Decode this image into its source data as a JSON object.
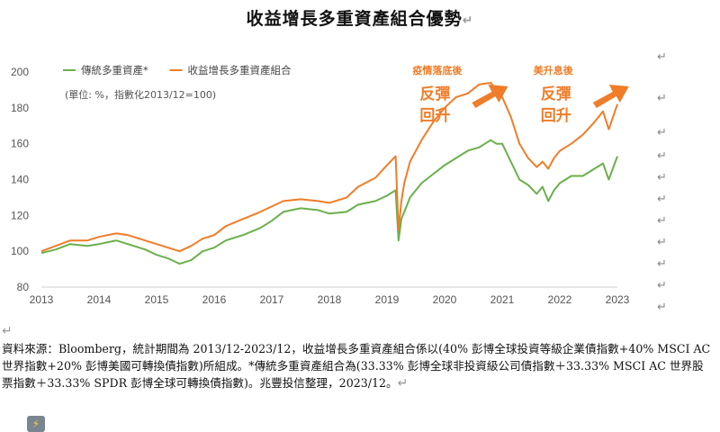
{
  "document": {
    "title": "收益增長多重資產組合優勢",
    "paragraph_mark": "↵",
    "source_text": "資料來源：Bloomberg，統計期間為 2013/12-2023/12，收益增長多重資產組合係以(40% 彭博全球投資等級企業債指數+40% MSCI AC 世界指數+20% 彭博美國可轉換債指數)所組成。*傳統多重資產組合為(33.33% 彭博全球非投資級公司債指數＋33.33% MSCI AC 世界股票指數＋33.33% SPDR 彭博全球可轉換債指數)。兆豐投信整理，2023/12。"
  },
  "chart_data": {
    "type": "line",
    "title": "",
    "xlabel": "",
    "ylabel": "",
    "note": "(單位: %，指數化2013/12=100)",
    "x_ticks": [
      "2013",
      "2014",
      "2015",
      "2016",
      "2017",
      "2018",
      "2019",
      "2020",
      "2021",
      "2022",
      "2023"
    ],
    "y_ticks": [
      80,
      100,
      120,
      140,
      160,
      180,
      200
    ],
    "xlim": [
      2013.0,
      2023.0
    ],
    "ylim": [
      80,
      200
    ],
    "grid": false,
    "legend_position": "top-left",
    "series": [
      {
        "name": "傳統多重資產*",
        "color": "#6ab04c",
        "x": [
          2013.0,
          2013.25,
          2013.5,
          2013.8,
          2014.0,
          2014.3,
          2014.5,
          2014.8,
          2015.0,
          2015.2,
          2015.4,
          2015.6,
          2015.8,
          2016.0,
          2016.2,
          2016.5,
          2016.8,
          2017.0,
          2017.2,
          2017.5,
          2017.8,
          2018.0,
          2018.3,
          2018.5,
          2018.8,
          2019.0,
          2019.15,
          2019.2,
          2019.25,
          2019.3,
          2019.4,
          2019.6,
          2019.8,
          2020.0,
          2020.2,
          2020.4,
          2020.6,
          2020.8,
          2020.9,
          2021.0,
          2021.15,
          2021.3,
          2021.45,
          2021.6,
          2021.7,
          2021.8,
          2021.9,
          2022.0,
          2022.2,
          2022.4,
          2022.6,
          2022.75,
          2022.85,
          2023.0
        ],
        "y": [
          99,
          101,
          104,
          103,
          104,
          106,
          104,
          101,
          98,
          96,
          93,
          95,
          100,
          102,
          106,
          109,
          113,
          117,
          122,
          124,
          123,
          121,
          122,
          126,
          128,
          131,
          134,
          106,
          118,
          122,
          130,
          138,
          143,
          148,
          152,
          156,
          158,
          162,
          160,
          160,
          150,
          140,
          137,
          132,
          136,
          128,
          134,
          138,
          142,
          142,
          146,
          149,
          140,
          153
        ]
      },
      {
        "name": "收益增長多重資產組合",
        "color": "#ef7d29",
        "x": [
          2013.0,
          2013.25,
          2013.5,
          2013.8,
          2014.0,
          2014.3,
          2014.5,
          2014.8,
          2015.0,
          2015.2,
          2015.4,
          2015.6,
          2015.8,
          2016.0,
          2016.2,
          2016.5,
          2016.8,
          2017.0,
          2017.2,
          2017.5,
          2017.8,
          2018.0,
          2018.3,
          2018.5,
          2018.8,
          2019.0,
          2019.15,
          2019.2,
          2019.25,
          2019.3,
          2019.4,
          2019.6,
          2019.8,
          2020.0,
          2020.2,
          2020.4,
          2020.6,
          2020.8,
          2020.9,
          2021.0,
          2021.15,
          2021.3,
          2021.45,
          2021.6,
          2021.7,
          2021.8,
          2021.9,
          2022.0,
          2022.2,
          2022.4,
          2022.6,
          2022.75,
          2022.85,
          2023.0
        ],
        "y": [
          100,
          103,
          106,
          106,
          108,
          110,
          109,
          106,
          104,
          102,
          100,
          103,
          107,
          109,
          114,
          118,
          122,
          125,
          128,
          129,
          128,
          127,
          130,
          136,
          141,
          148,
          153,
          112,
          128,
          138,
          150,
          162,
          172,
          180,
          186,
          188,
          193,
          194,
          190,
          186,
          175,
          160,
          152,
          147,
          150,
          146,
          152,
          156,
          160,
          165,
          172,
          178,
          168,
          182
        ]
      }
    ],
    "annotations": [
      {
        "x": 2020.1,
        "small": "疫情落底後",
        "big": [
          "反彈",
          "回升"
        ],
        "arrow": true
      },
      {
        "x": 2022.2,
        "small": "美升息後",
        "big": [
          "反彈",
          "回升"
        ],
        "arrow": true
      }
    ]
  }
}
